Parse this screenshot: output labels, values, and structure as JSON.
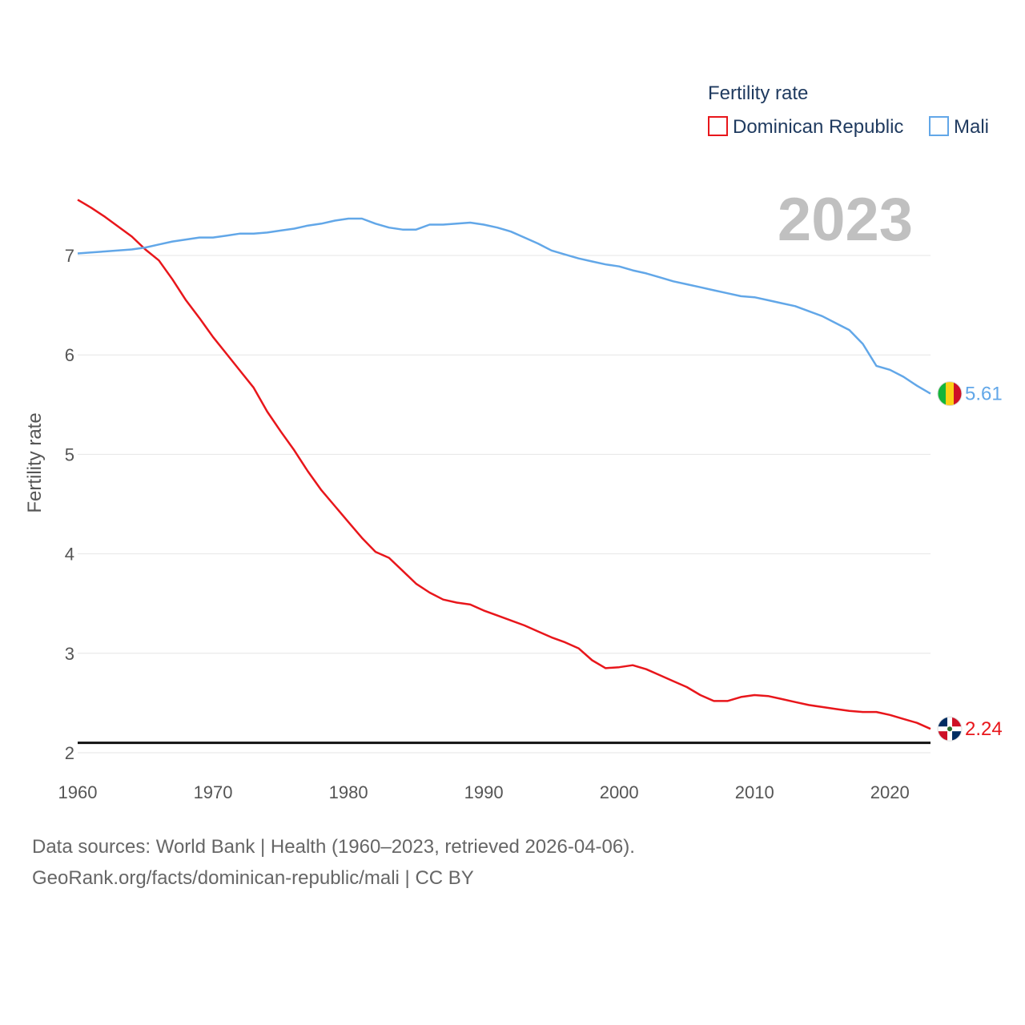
{
  "chart_data": {
    "type": "line",
    "title": "",
    "legend_title": "Fertility rate",
    "year_label": "2023",
    "ylabel": "Fertility rate",
    "xlabel": "",
    "xlim": [
      1960,
      2023
    ],
    "ylim": [
      2,
      7.6
    ],
    "x_ticks": [
      1960,
      1970,
      1980,
      1990,
      2000,
      2010,
      2020
    ],
    "y_ticks": [
      2,
      3,
      4,
      5,
      6,
      7
    ],
    "reference_line": 2.1,
    "x": [
      1960,
      1961,
      1962,
      1963,
      1964,
      1965,
      1966,
      1967,
      1968,
      1969,
      1970,
      1971,
      1972,
      1973,
      1974,
      1975,
      1976,
      1977,
      1978,
      1979,
      1980,
      1981,
      1982,
      1983,
      1984,
      1985,
      1986,
      1987,
      1988,
      1989,
      1990,
      1991,
      1992,
      1993,
      1994,
      1995,
      1996,
      1997,
      1998,
      1999,
      2000,
      2001,
      2002,
      2003,
      2004,
      2005,
      2006,
      2007,
      2008,
      2009,
      2010,
      2011,
      2012,
      2013,
      2014,
      2015,
      2016,
      2017,
      2018,
      2019,
      2020,
      2021,
      2022,
      2023
    ],
    "series": [
      {
        "name": "Dominican Republic",
        "color": "#e8161b",
        "end_label": "2.24",
        "flag": "dominican-republic-flag",
        "values": [
          7.56,
          7.48,
          7.39,
          7.29,
          7.19,
          7.06,
          6.95,
          6.76,
          6.55,
          6.37,
          6.18,
          6.01,
          5.84,
          5.67,
          5.43,
          5.23,
          5.04,
          4.83,
          4.64,
          4.48,
          4.32,
          4.16,
          4.02,
          3.96,
          3.83,
          3.7,
          3.61,
          3.54,
          3.51,
          3.49,
          3.43,
          3.38,
          3.33,
          3.28,
          3.22,
          3.16,
          3.11,
          3.05,
          2.93,
          2.85,
          2.86,
          2.88,
          2.84,
          2.78,
          2.72,
          2.66,
          2.58,
          2.52,
          2.52,
          2.56,
          2.58,
          2.57,
          2.54,
          2.51,
          2.48,
          2.46,
          2.44,
          2.42,
          2.41,
          2.41,
          2.38,
          2.34,
          2.3,
          2.24
        ]
      },
      {
        "name": "Mali",
        "color": "#62a7e8",
        "end_label": "5.61",
        "flag": "mali-flag",
        "values": [
          7.02,
          7.03,
          7.04,
          7.05,
          7.06,
          7.08,
          7.11,
          7.14,
          7.16,
          7.18,
          7.18,
          7.2,
          7.22,
          7.22,
          7.23,
          7.25,
          7.27,
          7.3,
          7.32,
          7.35,
          7.37,
          7.37,
          7.32,
          7.28,
          7.26,
          7.26,
          7.31,
          7.31,
          7.32,
          7.33,
          7.31,
          7.28,
          7.24,
          7.18,
          7.12,
          7.05,
          7.01,
          6.97,
          6.94,
          6.91,
          6.89,
          6.85,
          6.82,
          6.78,
          6.74,
          6.71,
          6.68,
          6.65,
          6.62,
          6.59,
          6.58,
          6.55,
          6.52,
          6.49,
          6.44,
          6.39,
          6.32,
          6.25,
          6.11,
          5.89,
          5.85,
          5.78,
          5.69,
          5.61
        ]
      }
    ]
  },
  "footer": {
    "line1": "Data sources: World Bank | Health (1960–2023, retrieved 2026-04-06).",
    "line2": "GeoRank.org/facts/dominican-republic/mali | CC BY"
  }
}
